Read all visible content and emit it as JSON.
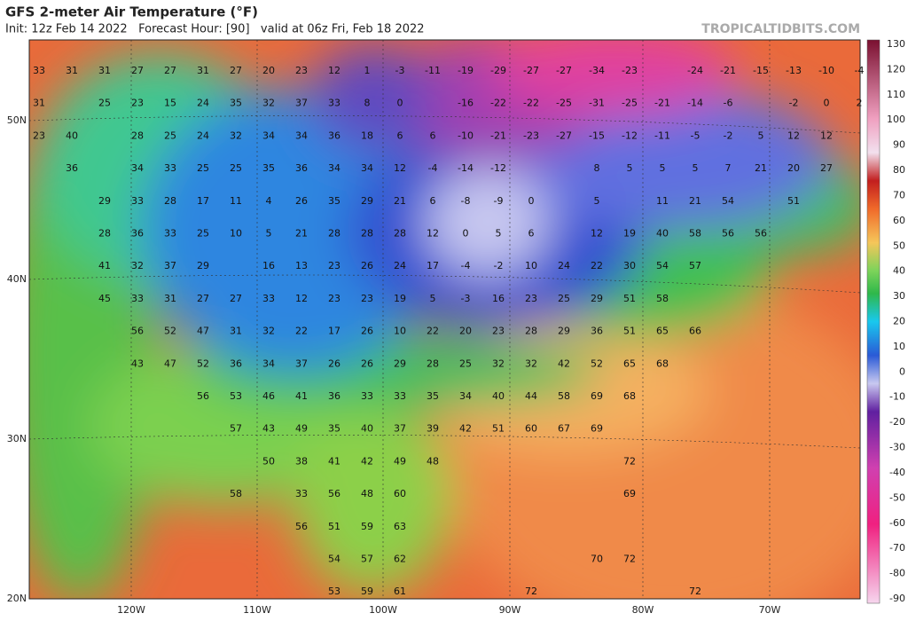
{
  "header": {
    "title": "GFS 2-meter Air Temperature (°F)",
    "subtitle": "Init: 12z Feb 14 2022   Forecast Hour: [90]   valid at 06z Fri, Feb 18 2022",
    "site": "TROPICALTIDBITS.COM"
  },
  "colorbar": {
    "labels": [
      130,
      120,
      110,
      100,
      90,
      80,
      70,
      60,
      50,
      40,
      30,
      20,
      10,
      0,
      -10,
      -20,
      -30,
      -40,
      -50,
      -60,
      -70,
      -80,
      -90
    ]
  },
  "axes": {
    "lat": [
      "50N",
      "40N",
      "30N",
      "20N"
    ],
    "lon": [
      "120W",
      "110W",
      "100W",
      "90W",
      "80W",
      "70W"
    ]
  },
  "map": {
    "values": [
      [
        33,
        31,
        31,
        27,
        27,
        31,
        27,
        20,
        23,
        12,
        1,
        -3,
        -11,
        -19,
        -29,
        -27,
        -27,
        -34,
        -23,
        null,
        -24,
        -21,
        -15,
        -13,
        -10,
        -4
      ],
      [
        31,
        null,
        25,
        23,
        15,
        24,
        35,
        32,
        37,
        33,
        8,
        0,
        null,
        -16,
        -22,
        -22,
        -25,
        -31,
        -25,
        -21,
        -14,
        -6,
        null,
        -2,
        0,
        2
      ],
      [
        23,
        40,
        null,
        28,
        25,
        24,
        32,
        34,
        34,
        36,
        18,
        6,
        6,
        -10,
        -21,
        -23,
        -27,
        -15,
        -12,
        -11,
        -5,
        -2,
        5,
        12,
        12,
        null
      ],
      [
        null,
        36,
        null,
        34,
        33,
        25,
        25,
        35,
        36,
        34,
        34,
        12,
        -4,
        -14,
        -12,
        null,
        null,
        8,
        5,
        5,
        5,
        7,
        21,
        20,
        27,
        null
      ],
      [
        null,
        null,
        29,
        33,
        28,
        17,
        11,
        4,
        26,
        35,
        29,
        21,
        6,
        -8,
        -9,
        0,
        null,
        5,
        null,
        11,
        21,
        54,
        null,
        51,
        null,
        null
      ],
      [
        null,
        null,
        28,
        36,
        33,
        25,
        10,
        5,
        21,
        28,
        28,
        28,
        12,
        0,
        5,
        6,
        null,
        12,
        19,
        40,
        58,
        56,
        56,
        null,
        null,
        null
      ],
      [
        null,
        null,
        41,
        32,
        37,
        29,
        null,
        16,
        13,
        23,
        26,
        24,
        17,
        -4,
        -2,
        10,
        24,
        22,
        30,
        54,
        57,
        null,
        null,
        null,
        null,
        null
      ],
      [
        null,
        null,
        45,
        33,
        31,
        27,
        27,
        33,
        12,
        23,
        23,
        19,
        5,
        -3,
        16,
        23,
        25,
        29,
        51,
        58,
        null,
        null,
        null,
        null,
        null,
        null
      ],
      [
        null,
        null,
        null,
        56,
        52,
        47,
        31,
        32,
        22,
        17,
        26,
        10,
        22,
        20,
        23,
        28,
        29,
        36,
        51,
        65,
        66,
        null,
        null,
        null,
        null,
        null
      ],
      [
        null,
        null,
        null,
        43,
        47,
        52,
        36,
        34,
        37,
        26,
        26,
        29,
        28,
        25,
        32,
        32,
        42,
        52,
        65,
        68,
        null,
        null,
        null,
        null,
        null,
        null
      ],
      [
        null,
        null,
        null,
        null,
        null,
        56,
        53,
        46,
        41,
        36,
        33,
        33,
        35,
        34,
        40,
        44,
        58,
        69,
        68,
        null,
        null,
        null,
        null,
        null,
        null,
        null
      ],
      [
        null,
        null,
        null,
        null,
        null,
        null,
        57,
        43,
        49,
        35,
        40,
        37,
        39,
        42,
        51,
        60,
        67,
        69,
        null,
        null,
        null,
        null,
        null,
        null,
        null,
        null
      ],
      [
        null,
        null,
        null,
        null,
        null,
        null,
        null,
        50,
        38,
        41,
        42,
        49,
        48,
        null,
        null,
        null,
        null,
        null,
        72,
        null,
        null,
        null,
        null,
        null,
        null,
        null
      ],
      [
        null,
        null,
        null,
        null,
        null,
        null,
        58,
        null,
        33,
        56,
        48,
        60,
        null,
        null,
        null,
        null,
        null,
        null,
        69,
        null,
        null,
        null,
        null,
        null,
        null,
        null
      ],
      [
        null,
        null,
        null,
        null,
        null,
        null,
        null,
        null,
        56,
        51,
        59,
        63,
        null,
        null,
        null,
        null,
        null,
        null,
        null,
        null,
        null,
        null,
        null,
        null,
        null,
        null
      ],
      [
        null,
        null,
        null,
        null,
        null,
        null,
        null,
        null,
        null,
        54,
        57,
        62,
        null,
        null,
        null,
        null,
        null,
        70,
        72,
        null,
        null,
        null,
        null,
        null,
        null,
        null
      ],
      [
        null,
        null,
        null,
        null,
        null,
        null,
        null,
        null,
        null,
        53,
        59,
        61,
        null,
        null,
        null,
        72,
        null,
        null,
        null,
        null,
        72,
        null,
        null,
        null,
        null,
        null
      ]
    ]
  }
}
